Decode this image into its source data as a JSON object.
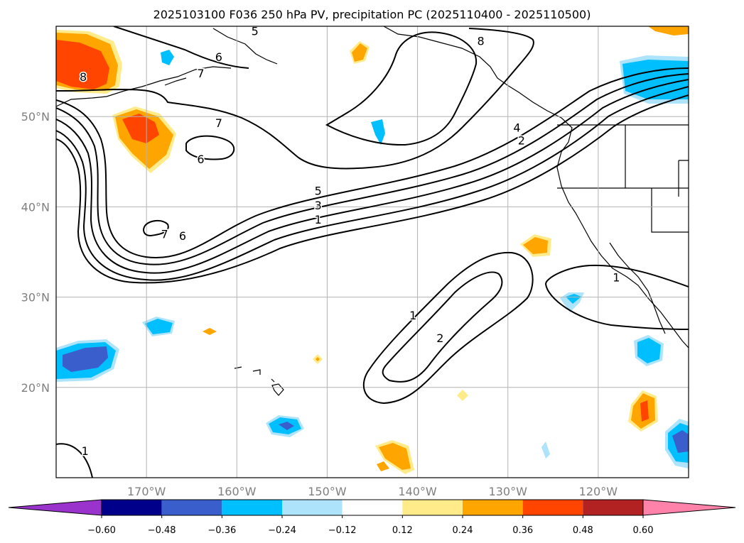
{
  "chart_data": {
    "type": "contour-map",
    "title": "2025103100 F036 250 hPa PV, precipitation PC (2025110400 - 2025110500)",
    "x_ticks": [
      {
        "value": -170,
        "label": "170°W"
      },
      {
        "value": -160,
        "label": "160°W"
      },
      {
        "value": -150,
        "label": "150°W"
      },
      {
        "value": -140,
        "label": "140°W"
      },
      {
        "value": -130,
        "label": "130°W"
      },
      {
        "value": -120,
        "label": "120°W"
      }
    ],
    "y_ticks": [
      {
        "value": 50,
        "label": "50°N"
      },
      {
        "value": 40,
        "label": "40°N"
      },
      {
        "value": 30,
        "label": "30°N"
      },
      {
        "value": 20,
        "label": "20°N"
      }
    ],
    "lon_range": [
      -180,
      -110
    ],
    "lat_range": [
      10,
      60
    ],
    "pv_contour_labels": [
      {
        "text": "5",
        "lon": -158.0,
        "lat": 59.5
      },
      {
        "text": "6",
        "lon": -162.0,
        "lat": 56.6
      },
      {
        "text": "7",
        "lon": -164.0,
        "lat": 54.8
      },
      {
        "text": "8",
        "lon": -177.0,
        "lat": 54.4
      },
      {
        "text": "7",
        "lon": -162.0,
        "lat": 49.3
      },
      {
        "text": "6",
        "lon": -164.0,
        "lat": 45.3
      },
      {
        "text": "7",
        "lon": -168.0,
        "lat": 37.0
      },
      {
        "text": "6",
        "lon": -166.0,
        "lat": 36.8
      },
      {
        "text": "5",
        "lon": -151.0,
        "lat": 41.8
      },
      {
        "text": "3",
        "lon": -151.0,
        "lat": 40.2
      },
      {
        "text": "1",
        "lon": -151.0,
        "lat": 38.6
      },
      {
        "text": "4",
        "lon": -129.0,
        "lat": 48.8
      },
      {
        "text": "2",
        "lon": -128.5,
        "lat": 47.4
      },
      {
        "text": "1",
        "lon": -140.5,
        "lat": 28.0
      },
      {
        "text": "2",
        "lon": -137.5,
        "lat": 25.5
      },
      {
        "text": "1",
        "lon": -118.0,
        "lat": 32.2
      },
      {
        "text": "1",
        "lon": -176.8,
        "lat": 13.0
      },
      {
        "text": "8",
        "lon": -133.0,
        "lat": 58.4
      }
    ],
    "colorbar": {
      "levels": [
        -0.6,
        -0.48,
        -0.36,
        -0.24,
        -0.12,
        0.12,
        0.24,
        0.36,
        0.48,
        0.6
      ],
      "tick_labels": [
        "−0.60",
        "−0.48",
        "−0.36",
        "−0.24",
        "−0.12",
        "0.12",
        "0.24",
        "0.36",
        "0.48",
        "0.60"
      ],
      "colors": [
        "#9933cc",
        "#00008b",
        "#3a5fcd",
        "#00bfff",
        "#aee4fb",
        "#ffffff",
        "#ffeb8a",
        "#ffa500",
        "#ff4500",
        "#b22222",
        "#ff82ab"
      ]
    }
  }
}
